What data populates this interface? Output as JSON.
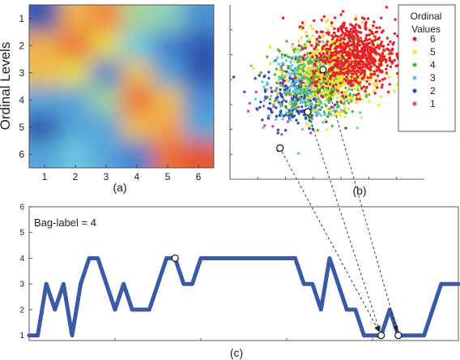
{
  "chart_data": [
    {
      "id": "a",
      "type": "heatmap",
      "caption": "(a)",
      "ylabel": "Ordinal Levels",
      "x_ticks": [
        "1",
        "2",
        "3",
        "4",
        "5",
        "6"
      ],
      "y_ticks": [
        "1",
        "2",
        "3",
        "4",
        "5",
        "6"
      ],
      "colormap": [
        "#1f2d8c",
        "#3d7fd0",
        "#6cc8e0",
        "#e6dc4a",
        "#f4a04a",
        "#e23a22"
      ],
      "values": [
        [
          0.1,
          0.75,
          0.85,
          0.5,
          0.45,
          0.25
        ],
        [
          0.75,
          0.9,
          0.6,
          0.4,
          0.2,
          0.1
        ],
        [
          0.7,
          0.6,
          0.2,
          0.7,
          0.3,
          0.1
        ],
        [
          0.3,
          0.3,
          0.5,
          0.9,
          0.7,
          0.25
        ],
        [
          0.1,
          0.3,
          0.3,
          0.7,
          0.8,
          0.3
        ],
        [
          0.3,
          0.4,
          0.3,
          0.2,
          0.9,
          0.95
        ]
      ]
    },
    {
      "id": "b",
      "type": "scatter",
      "caption": "(b)",
      "legend_title": [
        "Ordinal",
        "Values"
      ],
      "legend_position": "top-right",
      "series": [
        {
          "name": "6",
          "color": "#e8202a",
          "center": [
            6.9,
            8.0
          ],
          "spread": [
            1.5,
            1.4
          ],
          "count": 700
        },
        {
          "name": "5",
          "color": "#f2e22a",
          "center": [
            5.7,
            6.7
          ],
          "spread": [
            1.6,
            1.5
          ],
          "count": 480
        },
        {
          "name": "4",
          "color": "#5bb33a",
          "center": [
            4.6,
            6.2
          ],
          "spread": [
            1.5,
            1.5
          ],
          "count": 380
        },
        {
          "name": "3",
          "color": "#62c8d8",
          "center": [
            3.8,
            5.7
          ],
          "spread": [
            1.5,
            1.4
          ],
          "count": 330
        },
        {
          "name": "2",
          "color": "#2f4fa8",
          "center": [
            2.8,
            4.7
          ],
          "spread": [
            1.3,
            1.3
          ],
          "count": 230
        },
        {
          "name": "1",
          "color": "#c44fa8",
          "center": [
            2.2,
            4.2
          ],
          "spread": [
            1.4,
            1.4
          ],
          "count": 40
        }
      ],
      "highlighted_points": [
        [
          4.7,
          6.8
        ],
        [
          3.6,
          3.4
        ],
        [
          1.6,
          0.5
        ]
      ],
      "xlim": [
        -2,
        12
      ],
      "ylim": [
        -2,
        12
      ]
    },
    {
      "id": "c",
      "type": "line",
      "caption": "(c)",
      "annotation": "Bag-label = 4",
      "ylim": [
        0.8,
        6
      ],
      "y_ticks": [
        "1",
        "2",
        "3",
        "4",
        "5",
        "6"
      ],
      "xlim": [
        0,
        100
      ],
      "x": [
        0,
        2,
        4,
        6,
        8,
        10,
        12,
        14,
        16,
        18,
        20,
        22,
        24,
        26,
        28,
        30,
        32,
        34,
        36,
        38,
        40,
        42,
        44,
        46,
        48,
        50,
        52,
        54,
        56,
        58,
        60,
        62,
        64,
        66,
        68,
        70,
        72,
        74,
        76,
        78,
        80,
        82,
        84,
        86,
        88,
        90,
        92,
        94,
        96,
        98,
        100
      ],
      "values": [
        1,
        1,
        3,
        2,
        3,
        1,
        3,
        4,
        4,
        3,
        2,
        3,
        2,
        2,
        2,
        3,
        4,
        4,
        3,
        3,
        4,
        4,
        4,
        4,
        4,
        4,
        4,
        4,
        4,
        4,
        4,
        4,
        3,
        3,
        2,
        4,
        3,
        2,
        2,
        1,
        1,
        1,
        2,
        1,
        1,
        1,
        1,
        2,
        3,
        3,
        3
      ],
      "highlighted_indices": [
        17,
        41,
        43
      ]
    }
  ]
}
